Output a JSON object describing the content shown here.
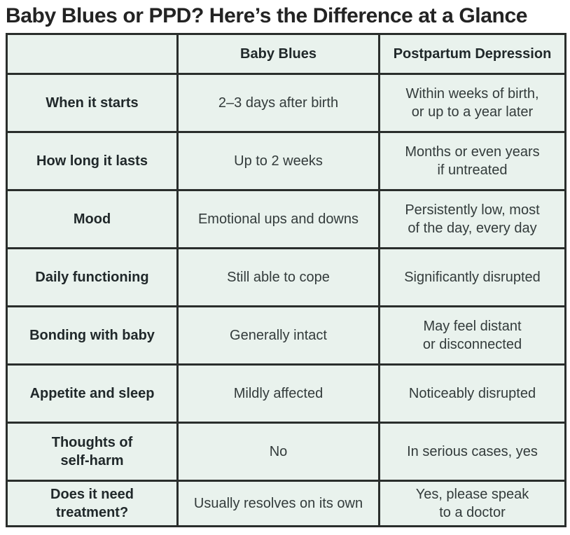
{
  "title": "Baby Blues or PPD? Here’s the Difference at a Glance",
  "table": {
    "columns": [
      "",
      "Baby Blues",
      "Postpartum Depression"
    ],
    "rows": [
      {
        "label": "When it starts",
        "baby_blues": "2–3 days after birth",
        "ppd": "Within weeks of birth,\nor up to a year later"
      },
      {
        "label": "How long it lasts",
        "baby_blues": "Up to 2 weeks",
        "ppd": "Months or even years\nif untreated"
      },
      {
        "label": "Mood",
        "baby_blues": "Emotional ups and downs",
        "ppd": "Persistently low, most\nof the day, every day"
      },
      {
        "label": "Daily functioning",
        "baby_blues": "Still able to cope",
        "ppd": "Significantly disrupted"
      },
      {
        "label": "Bonding with baby",
        "baby_blues": "Generally intact",
        "ppd": "May feel distant\nor disconnected"
      },
      {
        "label": "Appetite and sleep",
        "baby_blues": "Mildly affected",
        "ppd": "Noticeably disrupted"
      },
      {
        "label": "Thoughts of\nself-harm",
        "baby_blues": "No",
        "ppd": "In serious cases, yes"
      },
      {
        "label": "Does it need\ntreatment?",
        "baby_blues": "Usually resolves on its own",
        "ppd": "Yes, please speak\nto a doctor"
      }
    ]
  },
  "colors": {
    "cell_bg": "#e9f2ed",
    "border": "#2a2e2c",
    "title_text": "#232323",
    "label_text": "#20282a",
    "value_text": "#333b3b"
  }
}
